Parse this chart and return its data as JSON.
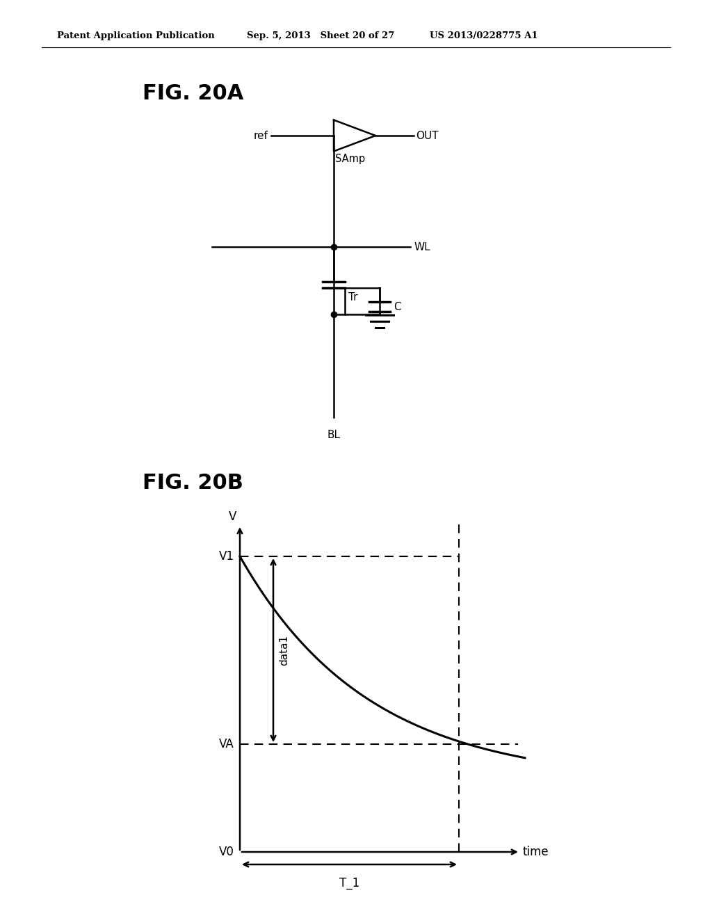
{
  "bg_color": "#ffffff",
  "text_color": "#000000",
  "header_left": "Patent Application Publication",
  "header_mid": "Sep. 5, 2013   Sheet 20 of 27",
  "header_right": "US 2013/0228775 A1",
  "fig_label_A": "FIG. 20A",
  "fig_label_B": "FIG. 20B",
  "circuit_labels": {
    "ref": "ref",
    "out": "OUT",
    "samp": "SAmp",
    "wl": "WL",
    "tr": "Tr",
    "c": "C",
    "bl": "BL"
  },
  "graph_labels": {
    "v_axis": "V",
    "v1": "V1",
    "va": "VA",
    "v0": "V0",
    "t1": "T_1",
    "time": "time",
    "data1": "data1"
  }
}
